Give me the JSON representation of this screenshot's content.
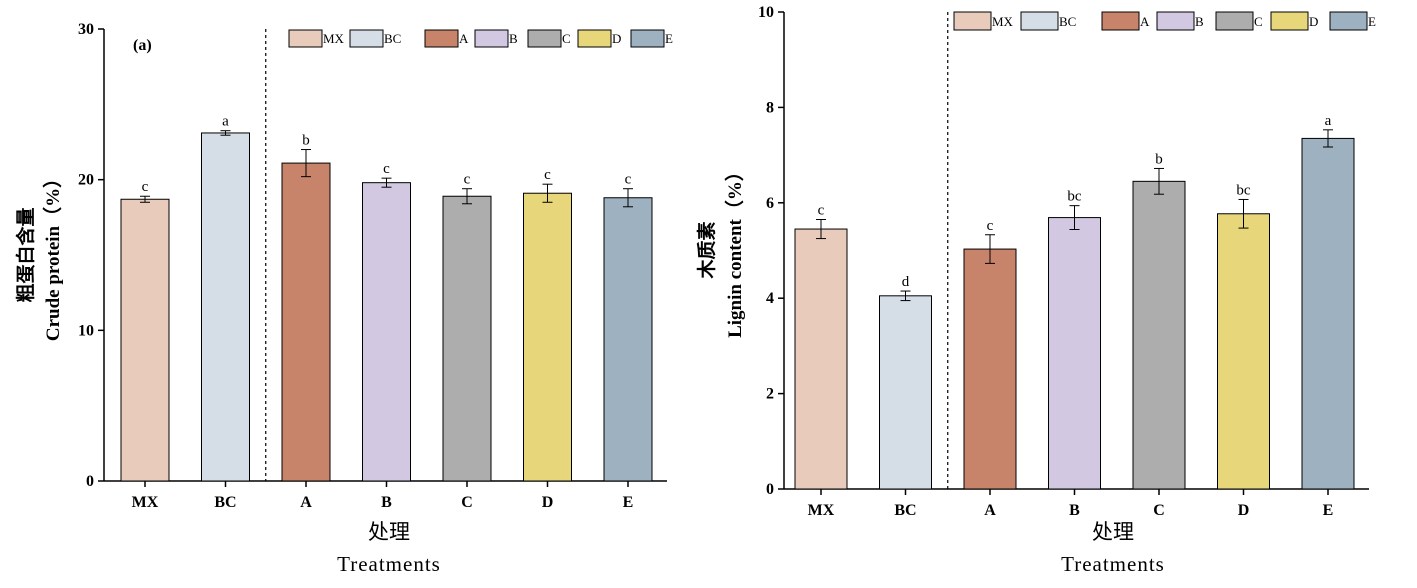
{
  "chart_data": [
    {
      "type": "bar",
      "panel_label": "(a)",
      "categories": [
        "MX",
        "BC",
        "A",
        "B",
        "C",
        "D",
        "E"
      ],
      "values": [
        18.7,
        23.1,
        21.1,
        19.8,
        18.9,
        19.1,
        18.8
      ],
      "error": [
        0.2,
        0.15,
        0.9,
        0.3,
        0.5,
        0.6,
        0.6
      ],
      "significance": [
        "c",
        "a",
        "b",
        "c",
        "c",
        "c",
        "c"
      ],
      "colors": [
        "#e8cbbb",
        "#d5dee6",
        "#c8846a",
        "#d2c8e2",
        "#adadad",
        "#e8d77a",
        "#9db1c0"
      ],
      "legend": [
        "MX",
        "BC",
        "A",
        "B",
        "C",
        "D",
        "E"
      ],
      "ylabel_cn": "粗蛋白含量",
      "ylabel_en": "Crude protein（%）",
      "xlabel_cn": "处理",
      "xlabel_en": "Treatments",
      "ylim": [
        0,
        30
      ],
      "yticks": [
        0,
        10,
        20,
        30
      ],
      "divider_after_index": 1,
      "legend_position": "top-right"
    },
    {
      "type": "bar",
      "categories": [
        "MX",
        "BC",
        "A",
        "B",
        "C",
        "D",
        "E"
      ],
      "values": [
        5.45,
        4.05,
        5.03,
        5.69,
        6.45,
        5.77,
        7.35
      ],
      "error": [
        0.2,
        0.1,
        0.3,
        0.25,
        0.27,
        0.3,
        0.18
      ],
      "significance": [
        "c",
        "d",
        "c",
        "bc",
        "b",
        "bc",
        "a"
      ],
      "colors": [
        "#e8cbbb",
        "#d5dee6",
        "#c8846a",
        "#d2c8e2",
        "#adadad",
        "#e8d77a",
        "#9db1c0"
      ],
      "legend": [
        "MX",
        "BC",
        "A",
        "B",
        "C",
        "D",
        "E"
      ],
      "ylabel_cn": "木质素",
      "ylabel_en": "Lignin content（%）",
      "xlabel_cn": "处理",
      "xlabel_en": "Treatments",
      "ylim": [
        0,
        10
      ],
      "yticks": [
        0,
        2,
        4,
        6,
        8,
        10
      ],
      "divider_after_index": 1,
      "legend_position": "top-right"
    }
  ]
}
